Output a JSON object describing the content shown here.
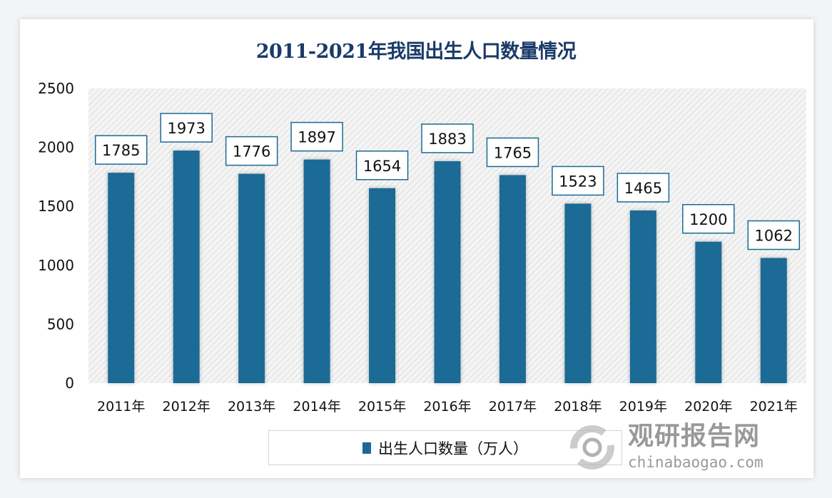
{
  "chart_data": {
    "type": "bar",
    "title": "2011-2021年我国出生人口数量情况",
    "categories": [
      "2011年",
      "2012年",
      "2013年",
      "2014年",
      "2015年",
      "2016年",
      "2017年",
      "2018年",
      "2019年",
      "2020年",
      "2021年"
    ],
    "series": [
      {
        "name": "出生人口数量（万人）",
        "values": [
          1785,
          1973,
          1776,
          1897,
          1654,
          1883,
          1765,
          1523,
          1465,
          1200,
          1062
        ]
      }
    ],
    "ylim": [
      0,
      2500
    ],
    "yticks": [
      0,
      500,
      1000,
      1500,
      2000,
      2500
    ],
    "xlabel": "",
    "ylabel": "",
    "grid": false,
    "legend": "bottom",
    "bar_color": "#1b6a96",
    "label_border_color": "#1b6a96",
    "background_pattern": "diagonal-hatch"
  },
  "watermark": {
    "name": "观研报告网",
    "url": "chinabaogao.com"
  }
}
